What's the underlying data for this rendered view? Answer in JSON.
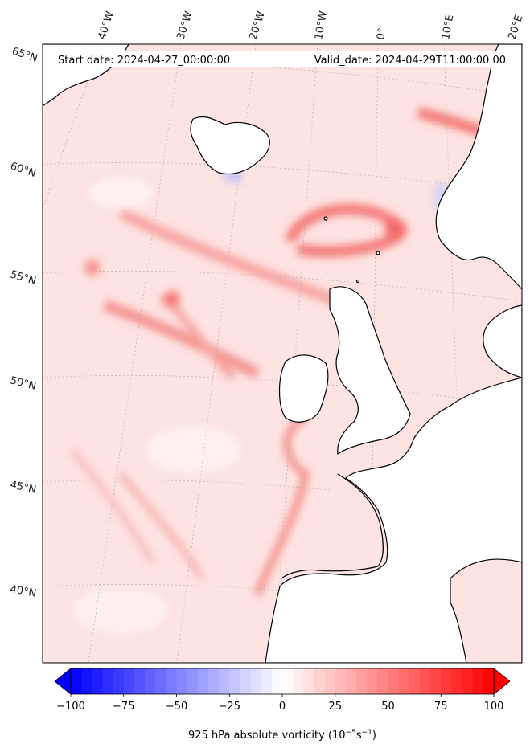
{
  "header": {
    "start_date": "Start date: 2024-04-27_00:00:00",
    "valid_date": "Valid_date: 2024-04-29T11:00:00.00"
  },
  "lon_labels": [
    "40°W",
    "30°W",
    "20°W",
    "10°W",
    "0°",
    "10°E",
    "20°E"
  ],
  "lat_labels": [
    "65°N",
    "60°N",
    "55°N",
    "50°N",
    "45°N",
    "40°N"
  ],
  "colorbar": {
    "title_main": "925 hPa absolute vorticity (10",
    "title_exp1": "−5",
    "title_mid": "s",
    "title_exp2": "−1",
    "title_end": ")",
    "ticks": [
      "−100",
      "−75",
      "−50",
      "−25",
      "0",
      "25",
      "50",
      "75",
      "100"
    ],
    "min": -100,
    "max": 100,
    "colormap": "bwr",
    "extend": "both"
  },
  "field": {
    "background_color": "#fde3e1",
    "low_color": "#0000ff",
    "high_color": "#ff0000"
  }
}
